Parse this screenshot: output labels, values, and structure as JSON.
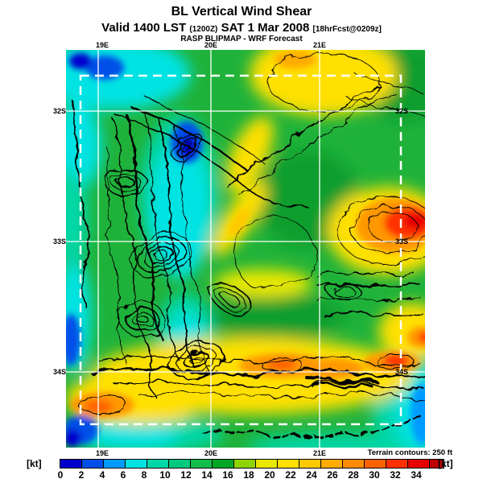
{
  "title": "BL Vertical Wind Shear",
  "subtitle": {
    "valid": "Valid 1400 LST",
    "init_time": "(1200Z)",
    "date": "SAT 1 Mar 2008",
    "fcst_note": "[18hrFcst@0209z]"
  },
  "source_line": "RASP BLIPMAP - WRF Forecast",
  "map": {
    "lat_labels": [
      "32S",
      "33S",
      "34S"
    ],
    "lon_labels": [
      "19E",
      "20E",
      "21E"
    ],
    "terrain_note": "Terrain contours: 250 ft"
  },
  "colorbar": {
    "unit_left": "[kt]",
    "unit_right": "[kt]",
    "ticks": [
      0,
      2,
      4,
      6,
      8,
      10,
      12,
      14,
      16,
      18,
      20,
      22,
      24,
      26,
      28,
      30,
      32,
      34
    ],
    "segment_colors": [
      "#0000CD",
      "#004FE8",
      "#009BFF",
      "#00E3E3",
      "#00D7A8",
      "#00C97E",
      "#12BD4B",
      "#00A726",
      "#8FD400",
      "#E8E800",
      "#FFE000",
      "#FFC900",
      "#FFAB00",
      "#FF8C00",
      "#FF6200",
      "#FF3000",
      "#E60000",
      "#BE0000"
    ]
  },
  "chart_data": {
    "type": "heatmap",
    "title": "BL Vertical Wind Shear",
    "valid_time": "1400 LST (1200Z) SAT 1 Mar 2008",
    "forecast_offset": "18hrFcst@0209z",
    "model": "RASP BLIPMAP - WRF Forecast",
    "units": "kt",
    "scale_min": 0,
    "scale_max": 34,
    "scale_step": 2,
    "lat_gridlines": [
      "32S",
      "33S",
      "34S"
    ],
    "lon_gridlines": [
      "19E",
      "20E",
      "21E"
    ],
    "terrain_contour_interval_ft": 250,
    "legend_position": "bottom"
  }
}
